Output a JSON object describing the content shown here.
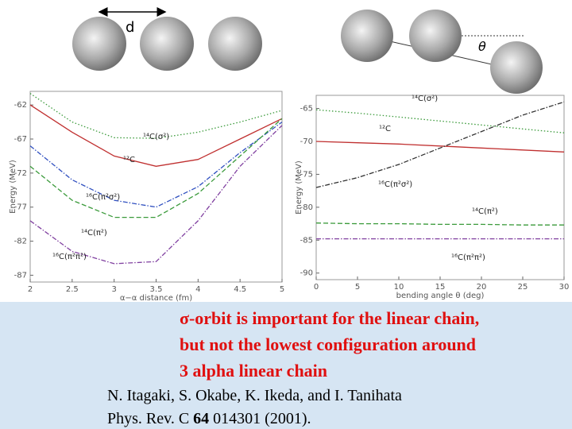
{
  "diagram": {
    "distance_label": "d",
    "angle_label": "θ"
  },
  "chart_data": [
    {
      "type": "line",
      "x_label": "α−α distance (fm)",
      "y_label": "Energy (MeV)",
      "x": [
        2,
        2.5,
        3,
        3.5,
        4,
        4.5,
        5
      ],
      "xlim": [
        2,
        5
      ],
      "xticks": [
        2,
        2.5,
        3,
        3.5,
        4,
        4.5,
        5
      ],
      "ylim": [
        -88,
        -60
      ],
      "yticks": [
        -62,
        -67,
        -72,
        -77,
        -82,
        -87
      ],
      "series": [
        {
          "name": "¹⁴C(σ²)",
          "color": "#3a9a3a",
          "dash": "dotted",
          "values": [
            -60.3,
            -64.5,
            -66.8,
            -66.9,
            -66,
            -64.5,
            -62.8
          ]
        },
        {
          "name": "¹²C",
          "color": "#c03030",
          "dash": "solid",
          "values": [
            -62,
            -66,
            -69.5,
            -71,
            -70,
            -67,
            -64
          ]
        },
        {
          "name": "¹⁶C(π²σ²)",
          "color": "#3050c0",
          "dash": "dashdot",
          "values": [
            -68,
            -73,
            -76,
            -77,
            -74,
            -69,
            -64.5
          ]
        },
        {
          "name": "¹⁴C(π²)",
          "color": "#3a9a3a",
          "dash": "dashed",
          "values": [
            -71,
            -76,
            -78.5,
            -78.5,
            -75,
            -69.5,
            -64
          ]
        },
        {
          "name": "¹⁶C(π²π²)",
          "color": "#8040a0",
          "dash": "dashdot",
          "values": [
            -79,
            -83.5,
            -85.3,
            -85,
            -79,
            -71,
            -65
          ]
        }
      ]
    },
    {
      "type": "line",
      "x_label": "bending angle θ (deg)",
      "y_label": "Energy (MeV)",
      "x": [
        0,
        5,
        10,
        15,
        20,
        25,
        30
      ],
      "xlim": [
        0,
        30
      ],
      "xticks": [
        0,
        5,
        10,
        15,
        20,
        25,
        30
      ],
      "ylim": [
        -91,
        -63
      ],
      "yticks": [
        -65,
        -70,
        -75,
        -80,
        -85,
        -90
      ],
      "series": [
        {
          "name": "¹⁴C(σ²)",
          "color": "#3a9a3a",
          "dash": "dotted",
          "values": [
            -65.2,
            -65.7,
            -66.3,
            -66.9,
            -67.5,
            -68.1,
            -68.7
          ]
        },
        {
          "name": "¹²C",
          "color": "#c03030",
          "dash": "solid",
          "values": [
            -70,
            -70.2,
            -70.4,
            -70.7,
            -71,
            -71.3,
            -71.6
          ]
        },
        {
          "name": "¹⁶C(π²σ²)",
          "color": "#303030",
          "dash": "dashdot",
          "values": [
            -77,
            -75.5,
            -73.5,
            -71,
            -68.5,
            -66,
            -64
          ]
        },
        {
          "name": "¹⁴C(π²)",
          "color": "#3a9a3a",
          "dash": "dashed",
          "values": [
            -82.4,
            -82.5,
            -82.5,
            -82.6,
            -82.6,
            -82.7,
            -82.7
          ]
        },
        {
          "name": "¹⁶C(π²π²)",
          "color": "#8040a0",
          "dash": "dashdot",
          "values": [
            -84.8,
            -84.8,
            -84.8,
            -84.8,
            -84.8,
            -84.8,
            -84.8
          ]
        }
      ]
    }
  ],
  "caption": [
    "σ-orbit is important for the linear chain,",
    "but not the lowest configuration around",
    "3 alpha linear chain"
  ],
  "reference": {
    "authors": "N. Itagaki, S. Okabe, K. Ikeda, and I. Tanihata",
    "journal": "Phys. Rev. C",
    "volume": "64",
    "rest": "014301 (2001)."
  }
}
